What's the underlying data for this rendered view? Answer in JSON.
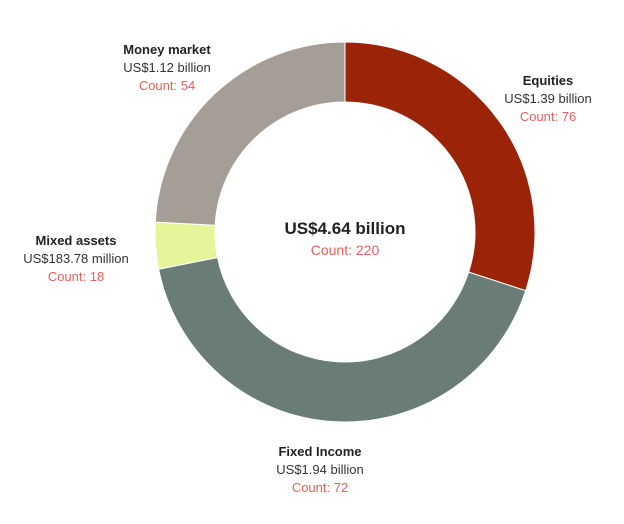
{
  "chart_data": {
    "type": "pie",
    "variant": "donut",
    "center": {
      "total": "US$4.64 billion",
      "count": "Count: 220"
    },
    "slices": [
      {
        "name": "Equities",
        "value": 1.39,
        "amount": "US$1.39 billion",
        "count": "Count: 76",
        "color": "#9b2408"
      },
      {
        "name": "Fixed Income",
        "value": 1.94,
        "amount": "US$1.94 billion",
        "count": "Count: 72",
        "color": "#6a7c76"
      },
      {
        "name": "Mixed assets",
        "value": 0.18378,
        "amount": "US$183.78 million",
        "count": "Count: 18",
        "color": "#e6f59a"
      },
      {
        "name": "Money market",
        "value": 1.12,
        "amount": "US$1.12 billion",
        "count": "Count: 54",
        "color": "#a59e96"
      }
    ]
  }
}
